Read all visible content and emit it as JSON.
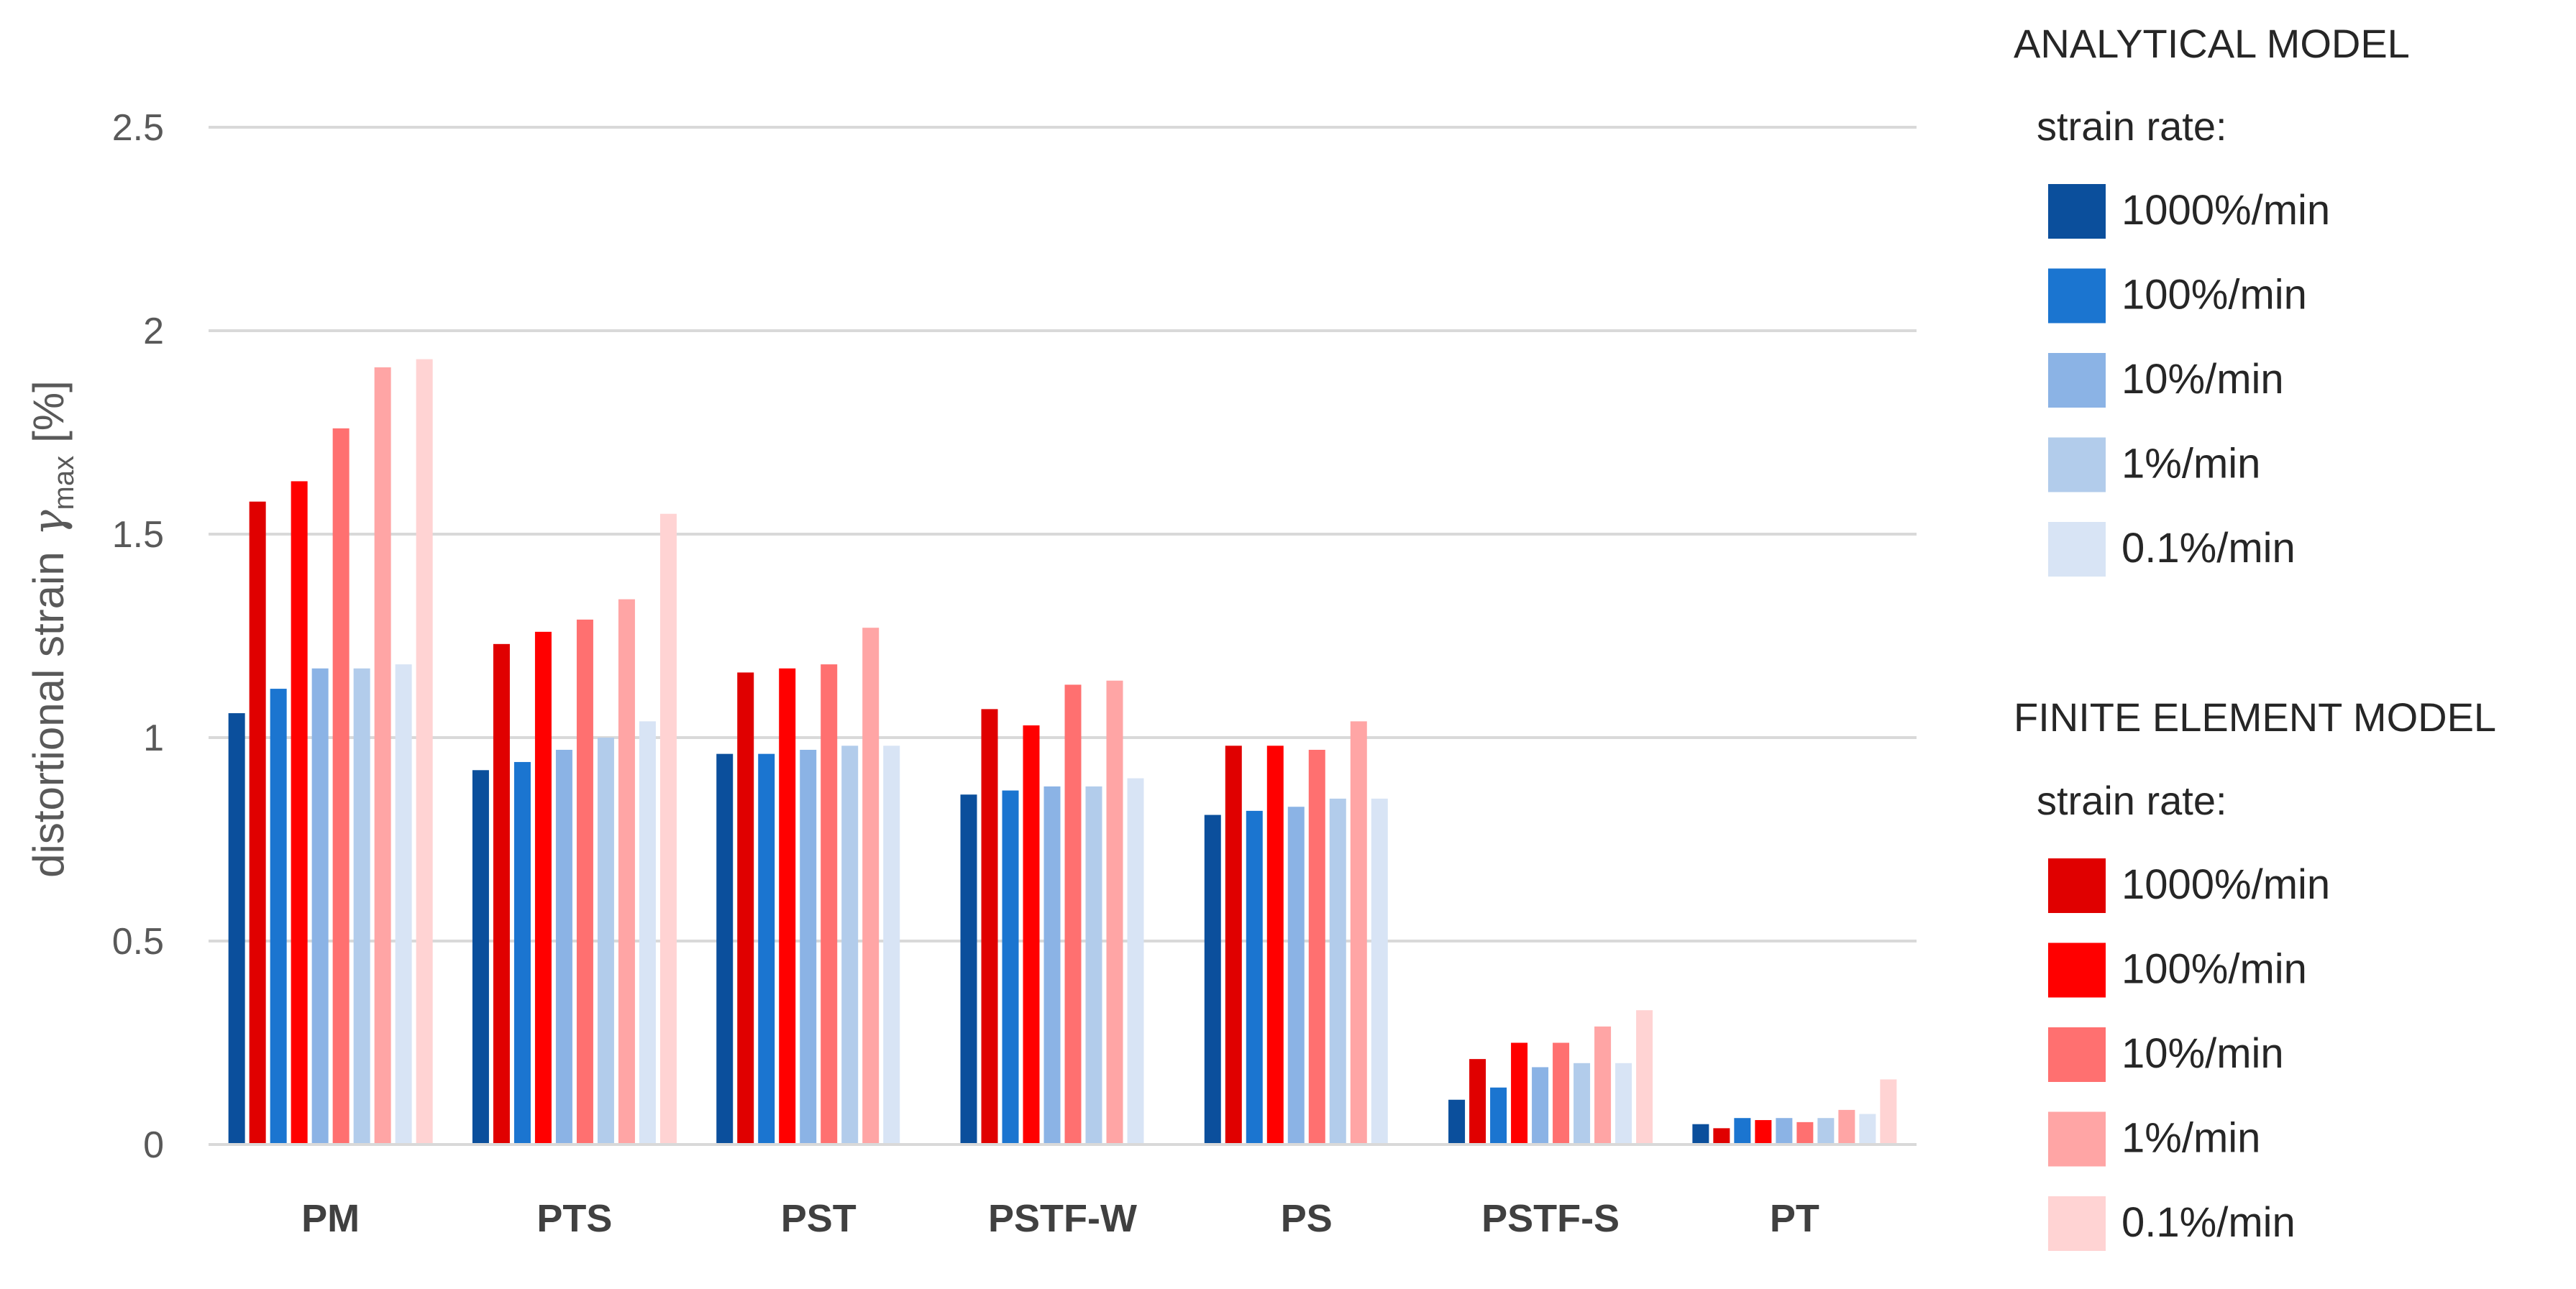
{
  "chart_data": {
    "type": "bar",
    "title": "",
    "ylabel_main": "distortional strain",
    "ylabel_symbol": "γ",
    "ylabel_subscript": "max",
    "ylabel_unit": "[%]",
    "xlabel": "",
    "ylim": [
      0,
      2.5
    ],
    "yticks": [
      0,
      0.5,
      1,
      1.5,
      2,
      2.5
    ],
    "ytick_labels": [
      "0",
      "0.5",
      "1",
      "1.5",
      "2",
      "2.5"
    ],
    "grid": true,
    "legend_position": "right",
    "categories": [
      "PM",
      "PTS",
      "PST",
      "PSTF-W",
      "PS",
      "PSTF-S",
      "PT"
    ],
    "bar_order": [
      "A1000",
      "F1000",
      "A100",
      "F100",
      "A10",
      "F10",
      "A1",
      "F1",
      "A0.1",
      "F0.1"
    ],
    "series": [
      {
        "id": "A1000",
        "group": "analytical",
        "name": "1000%/min",
        "color": "#0B4F9C",
        "values": [
          1.06,
          0.92,
          0.96,
          0.86,
          0.81,
          0.11,
          0.05
        ]
      },
      {
        "id": "F1000",
        "group": "fe",
        "name": "1000%/min",
        "color": "#E00000",
        "values": [
          1.58,
          1.23,
          1.16,
          1.07,
          0.98,
          0.21,
          0.04
        ]
      },
      {
        "id": "A100",
        "group": "analytical",
        "name": "100%/min",
        "color": "#1B75D0",
        "values": [
          1.12,
          0.94,
          0.96,
          0.87,
          0.82,
          0.14,
          0.065
        ]
      },
      {
        "id": "F100",
        "group": "fe",
        "name": "100%/min",
        "color": "#FF0000",
        "values": [
          1.63,
          1.26,
          1.17,
          1.03,
          0.98,
          0.25,
          0.06
        ]
      },
      {
        "id": "A10",
        "group": "analytical",
        "name": "10%/min",
        "color": "#8BB3E5",
        "values": [
          1.17,
          0.97,
          0.97,
          0.88,
          0.83,
          0.19,
          0.065
        ]
      },
      {
        "id": "F10",
        "group": "fe",
        "name": "10%/min",
        "color": "#FF7070",
        "values": [
          1.76,
          1.29,
          1.18,
          1.13,
          0.97,
          0.25,
          0.055
        ]
      },
      {
        "id": "A1",
        "group": "analytical",
        "name": "1%/min",
        "color": "#B2CCEB",
        "values": [
          1.17,
          1.0,
          0.98,
          0.88,
          0.85,
          0.2,
          0.065
        ]
      },
      {
        "id": "F1",
        "group": "fe",
        "name": "1%/min",
        "color": "#FFA5A5",
        "values": [
          1.91,
          1.34,
          1.27,
          1.14,
          1.04,
          0.29,
          0.085
        ]
      },
      {
        "id": "A0.1",
        "group": "analytical",
        "name": "0.1%/min",
        "color": "#D8E4F5",
        "values": [
          1.18,
          1.04,
          0.98,
          0.9,
          0.85,
          0.2,
          0.075
        ]
      },
      {
        "id": "F0.1",
        "group": "fe",
        "name": "0.1%/min",
        "color": "#FFD3D3",
        "values": [
          1.93,
          1.55,
          0.0,
          0.0,
          0.0,
          0.33,
          0.16
        ]
      }
    ]
  },
  "legend": {
    "analytical": {
      "title": "ANALYTICAL MODEL",
      "subtitle": "strain rate:",
      "items": [
        {
          "label": "1000%/min",
          "color": "#0B4F9C"
        },
        {
          "label": "100%/min",
          "color": "#1B75D0"
        },
        {
          "label": "10%/min",
          "color": "#8BB3E5"
        },
        {
          "label": "1%/min",
          "color": "#B2CCEB"
        },
        {
          "label": "0.1%/min",
          "color": "#D8E4F5"
        }
      ]
    },
    "fe": {
      "title": "FINITE ELEMENT MODEL",
      "subtitle": "strain rate:",
      "items": [
        {
          "label": "1000%/min",
          "color": "#E00000"
        },
        {
          "label": "100%/min",
          "color": "#FF0000"
        },
        {
          "label": "10%/min",
          "color": "#FF7070"
        },
        {
          "label": "1%/min",
          "color": "#FFA5A5"
        },
        {
          "label": "0.1%/min",
          "color": "#FFD3D3"
        }
      ]
    }
  }
}
